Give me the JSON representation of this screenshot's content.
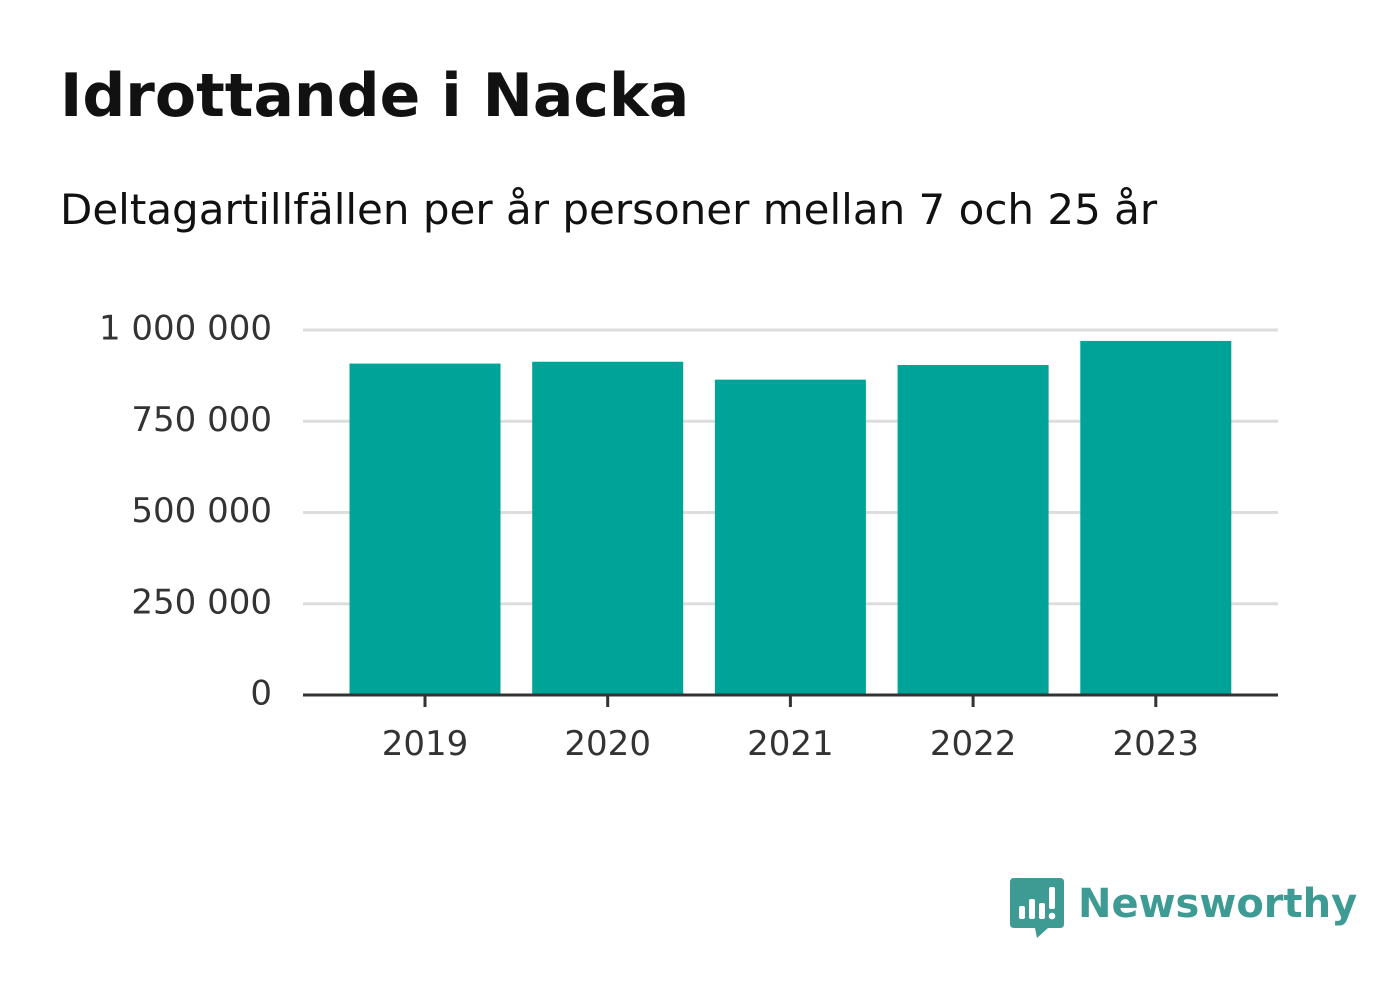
{
  "title": "Idrottande i Nacka",
  "subtitle": "Deltagartillfällen per år personer mellan 7 och 25 år",
  "brand": {
    "name": "Newsworthy",
    "logo_icon": "newsworthy-chart-bubble-icon",
    "color": "#3d9b94"
  },
  "colors": {
    "bar": "#00a398",
    "grid": "#dddddd",
    "axis": "#333333",
    "text": "#111111"
  },
  "chart_data": {
    "type": "bar",
    "categories": [
      "2019",
      "2020",
      "2021",
      "2022",
      "2023"
    ],
    "values": [
      908000,
      913000,
      864000,
      904000,
      970000
    ],
    "ylim": [
      0,
      1000000
    ],
    "yticks": [
      0,
      250000,
      500000,
      750000,
      1000000
    ],
    "ytick_labels": [
      "0",
      "250 000",
      "500 000",
      "750 000",
      "1 000 000"
    ],
    "grid": true,
    "legend": "none"
  }
}
